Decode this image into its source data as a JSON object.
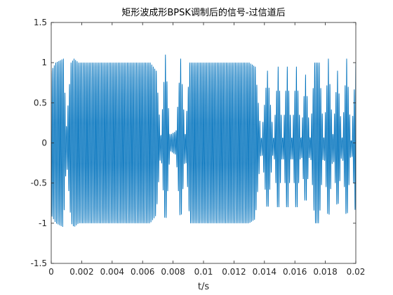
{
  "chart_data": {
    "type": "line",
    "title": "矩形波成形BPSK调制后的信号-过信道后",
    "xlabel": "t/s",
    "ylabel": "",
    "xlim": [
      0,
      0.02
    ],
    "ylim": [
      -1.5,
      1.5
    ],
    "xticks": [
      0,
      0.002,
      0.004,
      0.006,
      0.008,
      0.01,
      0.012,
      0.014,
      0.016,
      0.018,
      0.02
    ],
    "xtick_labels": [
      "0",
      "0.002",
      "0.004",
      "0.006",
      "0.008",
      "0.01",
      "0.012",
      "0.014",
      "0.016",
      "0.018",
      "0.02"
    ],
    "yticks": [
      1.5,
      1,
      0.5,
      0,
      -0.5,
      -1,
      -1.5
    ],
    "ytick_labels": [
      "1.5",
      "1",
      "0.5",
      "0",
      "-0.5",
      "-1",
      "-1.5"
    ],
    "grid": false,
    "legend": "none",
    "series_color": "#0072BD",
    "carrier_frequency_hz": 10000,
    "envelope": {
      "t": [
        0,
        0.0003,
        0.0008,
        0.001,
        0.0013,
        0.0015,
        0.0018,
        0.002,
        0.0022,
        0.0025,
        0.003,
        0.0035,
        0.004,
        0.0045,
        0.005,
        0.0055,
        0.006,
        0.0065,
        0.0069,
        0.0072,
        0.0075,
        0.0078,
        0.0082,
        0.0085,
        0.0088,
        0.0091,
        0.0095,
        0.0098,
        0.0102,
        0.0105,
        0.011,
        0.0115,
        0.012,
        0.0125,
        0.013,
        0.0134,
        0.0138,
        0.0142,
        0.0146,
        0.0149,
        0.0152,
        0.0155,
        0.0158,
        0.0161,
        0.0164,
        0.0167,
        0.017,
        0.0173,
        0.0176,
        0.0179,
        0.0182,
        0.0185,
        0.0188,
        0.0191,
        0.0194,
        0.0197,
        0.02
      ],
      "a": [
        0.9,
        1.0,
        1.05,
        0.2,
        1.0,
        1.05,
        1.0,
        1.0,
        1.0,
        1.0,
        1.0,
        1.0,
        1.0,
        1.0,
        1.0,
        1.0,
        1.0,
        1.0,
        0.9,
        0.08,
        1.1,
        0.1,
        0.15,
        1.05,
        0.1,
        1.0,
        1.0,
        1.0,
        1.0,
        1.0,
        1.0,
        1.0,
        1.0,
        1.0,
        1.0,
        0.95,
        0.05,
        0.9,
        0.05,
        0.95,
        0.05,
        0.95,
        0.05,
        0.95,
        0.05,
        0.85,
        0.05,
        1.0,
        1.0,
        0.05,
        1.05,
        0.1,
        0.9,
        0.05,
        1.05,
        0.0,
        1.0
      ]
    }
  }
}
